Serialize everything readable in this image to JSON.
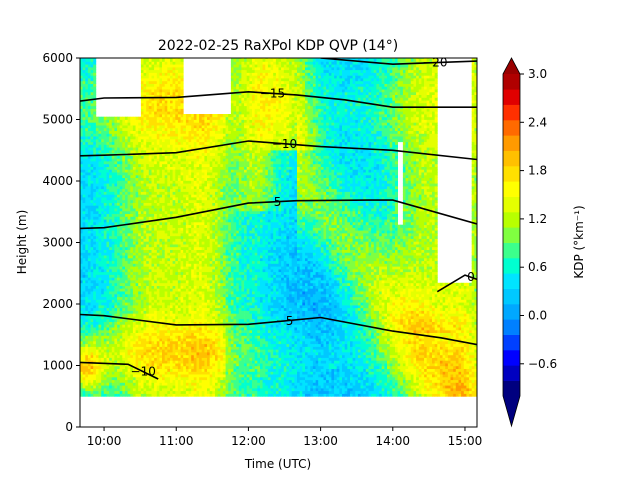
{
  "chart_data": {
    "type": "heatmap",
    "title": "2022-02-25 RaXPol KDP QVP (14°)",
    "xlabel": "Time (UTC)",
    "ylabel": "Height (m)",
    "colorbar_label": "KDP (°km⁻¹)",
    "xlim": [
      "09:40",
      "15:10"
    ],
    "ylim": [
      0,
      6000
    ],
    "x_ticks": [
      "10:00",
      "11:00",
      "12:00",
      "13:00",
      "14:00",
      "15:00"
    ],
    "y_ticks": [
      "0",
      "1000",
      "2000",
      "3000",
      "4000",
      "5000",
      "6000"
    ],
    "colorbar": {
      "range": [
        -1.0,
        3.0
      ],
      "ticks": [
        "−0.6",
        "0.0",
        "0.6",
        "1.2",
        "1.8",
        "2.4",
        "3.0"
      ],
      "extend": "both",
      "colors": [
        "#00007f",
        "#0000c0",
        "#0000ff",
        "#0040ff",
        "#0080ff",
        "#00a8ff",
        "#00c8ff",
        "#00e4ff",
        "#00ffd0",
        "#3cff8c",
        "#80ff40",
        "#b8ff00",
        "#e4ff00",
        "#ffff00",
        "#ffe000",
        "#ffc000",
        "#ff9a00",
        "#ff6a00",
        "#ff3000",
        "#e00000",
        "#b00000"
      ],
      "under_color": "#00007f",
      "over_color": "#990000"
    },
    "field_summary": "Data from about 500 m to 6000 m. Mostly cyan-blue (0 to 0.6) in mid-levels around 12:00-13:30, yellow-green (1.2-1.6) bands near 10:30-11:00 and after 13:30, orange (up to ~2.2) near 1000 m at 09:45. White gaps (no data) above 5000 m near 10:00-10:30 and 11:00-11:40, and above 2300 m near 14:35-15:00.",
    "temperature_contours": [
      {
        "label": "−20",
        "points": [
          [
            "13:00",
            6000
          ],
          [
            "14:00",
            5900
          ],
          [
            "15:10",
            5950
          ]
        ]
      },
      {
        "label": "−15",
        "points": [
          [
            "09:40",
            5300
          ],
          [
            "10:00",
            5350
          ],
          [
            "11:00",
            5360
          ],
          [
            "12:00",
            5450
          ],
          [
            "12:40",
            5400
          ],
          [
            "13:20",
            5320
          ],
          [
            "14:00",
            5200
          ],
          [
            "15:10",
            5200
          ]
        ]
      },
      {
        "label": "−10",
        "points": [
          [
            "09:40",
            4410
          ],
          [
            "10:00",
            4420
          ],
          [
            "11:00",
            4460
          ],
          [
            "12:00",
            4650
          ],
          [
            "13:00",
            4560
          ],
          [
            "14:00",
            4500
          ],
          [
            "15:10",
            4350
          ]
        ]
      },
      {
        "label": "−5",
        "points": [
          [
            "09:40",
            3230
          ],
          [
            "10:00",
            3240
          ],
          [
            "11:00",
            3410
          ],
          [
            "12:00",
            3640
          ],
          [
            "12:40",
            3680
          ],
          [
            "13:40",
            3690
          ],
          [
            "14:00",
            3690
          ],
          [
            "15:10",
            3300
          ]
        ]
      },
      {
        "label": "−5",
        "points": [
          [
            "09:40",
            1830
          ],
          [
            "10:00",
            1810
          ],
          [
            "11:00",
            1660
          ],
          [
            "12:00",
            1670
          ],
          [
            "13:00",
            1780
          ],
          [
            "14:00",
            1560
          ],
          [
            "14:40",
            1450
          ],
          [
            "15:10",
            1340
          ]
        ]
      },
      {
        "label": "0",
        "points": [
          [
            "14:37",
            2200
          ],
          [
            "15:00",
            2470
          ],
          [
            "15:10",
            2400
          ]
        ]
      },
      {
        "label": "−10",
        "points": [
          [
            "09:40",
            1050
          ],
          [
            "10:20",
            1020
          ],
          [
            "10:45",
            780
          ]
        ]
      }
    ]
  }
}
